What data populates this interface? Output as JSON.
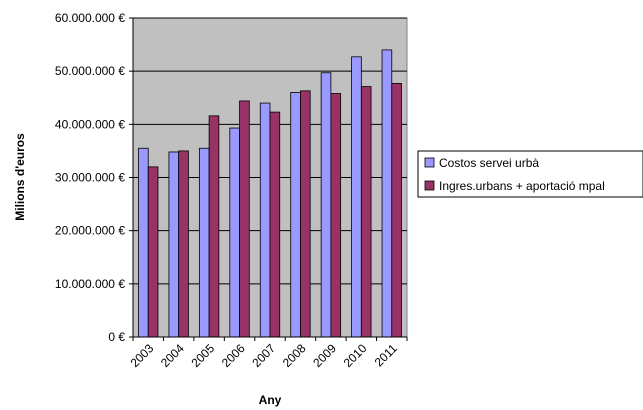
{
  "chart_data": {
    "type": "bar",
    "categories": [
      "2003",
      "2004",
      "2005",
      "2006",
      "2007",
      "2008",
      "2009",
      "2010",
      "2011"
    ],
    "series": [
      {
        "name": "Costos servei urbà",
        "color": "#9999ff",
        "values": [
          35500000,
          34800000,
          35500000,
          39300000,
          44000000,
          46000000,
          49700000,
          52700000,
          54000000
        ]
      },
      {
        "name": "Ingres.urbans + aportació mpal",
        "color": "#993366",
        "values": [
          32000000,
          35000000,
          41600000,
          44400000,
          42300000,
          46300000,
          45800000,
          47100000,
          47700000
        ]
      }
    ],
    "ylim": [
      0,
      60000000
    ],
    "yticks": [
      0,
      10000000,
      20000000,
      30000000,
      40000000,
      50000000,
      60000000
    ],
    "ytick_labels": [
      "0 €",
      "10.000.000 €",
      "20.000.000 €",
      "30.000.000 €",
      "40.000.000 €",
      "50.000.000 €",
      "60.000.000 €"
    ],
    "xlabel": "Any",
    "ylabel": "Milions d'euros",
    "grid": true,
    "legend": "right",
    "plot_background": "#c0c0c0"
  }
}
